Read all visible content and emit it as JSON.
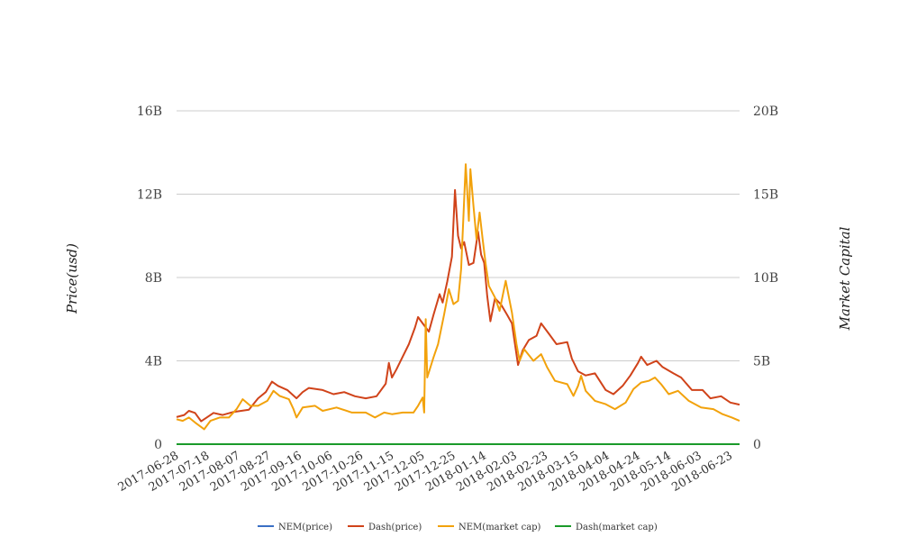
{
  "chart_data": {
    "type": "line",
    "title": "",
    "ylabel": "Price(usd)",
    "y2label": "Market Capital",
    "ylim": [
      0,
      16000000000
    ],
    "y2lim": [
      0,
      20000000000
    ],
    "y_ticks": [
      "0",
      "4B",
      "8B",
      "12B",
      "16B"
    ],
    "y2_ticks": [
      "0",
      "5B",
      "10B",
      "15B",
      "20B"
    ],
    "x_ticks": [
      "2017-06-28",
      "2017-07-18",
      "2017-08-07",
      "2017-08-27",
      "2017-09-16",
      "2017-10-06",
      "2017-10-26",
      "2017-11-15",
      "2017-12-05",
      "2017-12-25",
      "2018-01-14",
      "2018-02-03",
      "2018-02-23",
      "2018-03-15",
      "2018-04-04",
      "2018-04-24",
      "2018-05-14",
      "2018-06-03",
      "2018-06-23"
    ],
    "x_range": [
      "2017-06-28",
      "2018-06-29"
    ],
    "grid": true,
    "legend_position": "bottom",
    "series": [
      {
        "name": "NEM(price)",
        "axis": "left",
        "color": "#3a6fc4",
        "points": [
          [
            "2017-06-28",
            0.2
          ],
          [
            "2018-01-07",
            1.9
          ],
          [
            "2018-06-29",
            0.2
          ]
        ]
      },
      {
        "name": "Dash(price)",
        "axis": "left",
        "color": "#d0431a",
        "points": [
          [
            "2017-06-28",
            1300000000
          ],
          [
            "2017-07-03",
            1400000000
          ],
          [
            "2017-07-06",
            1600000000
          ],
          [
            "2017-07-10",
            1500000000
          ],
          [
            "2017-07-14",
            1100000000
          ],
          [
            "2017-07-18",
            1300000000
          ],
          [
            "2017-07-22",
            1500000000
          ],
          [
            "2017-07-28",
            1400000000
          ],
          [
            "2017-08-04",
            1550000000
          ],
          [
            "2017-08-14",
            1650000000
          ],
          [
            "2017-08-20",
            2200000000
          ],
          [
            "2017-08-25",
            2500000000
          ],
          [
            "2017-08-29",
            3000000000
          ],
          [
            "2017-09-02",
            2800000000
          ],
          [
            "2017-09-08",
            2600000000
          ],
          [
            "2017-09-14",
            2200000000
          ],
          [
            "2017-09-18",
            2500000000
          ],
          [
            "2017-09-22",
            2700000000
          ],
          [
            "2017-10-01",
            2600000000
          ],
          [
            "2017-10-08",
            2400000000
          ],
          [
            "2017-10-15",
            2500000000
          ],
          [
            "2017-10-22",
            2300000000
          ],
          [
            "2017-10-29",
            2200000000
          ],
          [
            "2017-11-05",
            2300000000
          ],
          [
            "2017-11-11",
            2900000000
          ],
          [
            "2017-11-13",
            3900000000
          ],
          [
            "2017-11-15",
            3200000000
          ],
          [
            "2017-11-18",
            3600000000
          ],
          [
            "2017-11-22",
            4200000000
          ],
          [
            "2017-11-26",
            4800000000
          ],
          [
            "2017-11-30",
            5600000000
          ],
          [
            "2017-12-02",
            6100000000
          ],
          [
            "2017-12-05",
            5800000000
          ],
          [
            "2017-12-09",
            5400000000
          ],
          [
            "2017-12-12",
            6200000000
          ],
          [
            "2017-12-16",
            7200000000
          ],
          [
            "2017-12-18",
            6800000000
          ],
          [
            "2017-12-21",
            7800000000
          ],
          [
            "2017-12-24",
            9000000000
          ],
          [
            "2017-12-26",
            12200000000
          ],
          [
            "2017-12-28",
            10000000000
          ],
          [
            "2017-12-30",
            9400000000
          ],
          [
            "2018-01-01",
            9700000000
          ],
          [
            "2018-01-04",
            8600000000
          ],
          [
            "2018-01-07",
            8700000000
          ],
          [
            "2018-01-10",
            10200000000
          ],
          [
            "2018-01-12",
            9100000000
          ],
          [
            "2018-01-14",
            8700000000
          ],
          [
            "2018-01-16",
            7100000000
          ],
          [
            "2018-01-18",
            5900000000
          ],
          [
            "2018-01-21",
            7000000000
          ],
          [
            "2018-01-25",
            6700000000
          ],
          [
            "2018-01-29",
            6200000000
          ],
          [
            "2018-02-01",
            5800000000
          ],
          [
            "2018-02-05",
            3800000000
          ],
          [
            "2018-02-08",
            4500000000
          ],
          [
            "2018-02-12",
            5000000000
          ],
          [
            "2018-02-17",
            5200000000
          ],
          [
            "2018-02-20",
            5800000000
          ],
          [
            "2018-02-25",
            5300000000
          ],
          [
            "2018-03-02",
            4800000000
          ],
          [
            "2018-03-09",
            4900000000
          ],
          [
            "2018-03-12",
            4100000000
          ],
          [
            "2018-03-16",
            3500000000
          ],
          [
            "2018-03-21",
            3300000000
          ],
          [
            "2018-03-27",
            3400000000
          ],
          [
            "2018-04-03",
            2600000000
          ],
          [
            "2018-04-08",
            2400000000
          ],
          [
            "2018-04-14",
            2800000000
          ],
          [
            "2018-04-19",
            3300000000
          ],
          [
            "2018-04-24",
            3900000000
          ],
          [
            "2018-04-26",
            4200000000
          ],
          [
            "2018-04-30",
            3800000000
          ],
          [
            "2018-05-06",
            4000000000
          ],
          [
            "2018-05-10",
            3700000000
          ],
          [
            "2018-05-17",
            3400000000
          ],
          [
            "2018-05-22",
            3200000000
          ],
          [
            "2018-05-29",
            2600000000
          ],
          [
            "2018-06-05",
            2600000000
          ],
          [
            "2018-06-10",
            2200000000
          ],
          [
            "2018-06-17",
            2300000000
          ],
          [
            "2018-06-23",
            2000000000
          ],
          [
            "2018-06-29",
            1900000000
          ]
        ]
      },
      {
        "name": "NEM(market cap)",
        "axis": "right",
        "color": "#f2a20c",
        "points": [
          [
            "2017-06-28",
            1500000000
          ],
          [
            "2017-07-02",
            1400000000
          ],
          [
            "2017-07-06",
            1600000000
          ],
          [
            "2017-07-10",
            1300000000
          ],
          [
            "2017-07-16",
            900000000
          ],
          [
            "2017-07-20",
            1400000000
          ],
          [
            "2017-07-26",
            1600000000
          ],
          [
            "2017-08-01",
            1600000000
          ],
          [
            "2017-08-06",
            2100000000
          ],
          [
            "2017-08-10",
            2700000000
          ],
          [
            "2017-08-15",
            2300000000
          ],
          [
            "2017-08-20",
            2300000000
          ],
          [
            "2017-08-26",
            2600000000
          ],
          [
            "2017-08-30",
            3200000000
          ],
          [
            "2017-09-03",
            2900000000
          ],
          [
            "2017-09-09",
            2700000000
          ],
          [
            "2017-09-12",
            2100000000
          ],
          [
            "2017-09-14",
            1600000000
          ],
          [
            "2017-09-18",
            2200000000
          ],
          [
            "2017-09-26",
            2300000000
          ],
          [
            "2017-10-01",
            2000000000
          ],
          [
            "2017-10-10",
            2200000000
          ],
          [
            "2017-10-20",
            1900000000
          ],
          [
            "2017-10-29",
            1900000000
          ],
          [
            "2017-11-04",
            1600000000
          ],
          [
            "2017-11-10",
            1900000000
          ],
          [
            "2017-11-15",
            1800000000
          ],
          [
            "2017-11-22",
            1900000000
          ],
          [
            "2017-11-29",
            1900000000
          ],
          [
            "2017-12-02",
            2300000000
          ],
          [
            "2017-12-05",
            2800000000
          ],
          [
            "2017-12-06",
            1900000000
          ],
          [
            "2017-12-07",
            7500000000
          ],
          [
            "2017-12-08",
            4000000000
          ],
          [
            "2017-12-12",
            5200000000
          ],
          [
            "2017-12-15",
            6000000000
          ],
          [
            "2017-12-19",
            7800000000
          ],
          [
            "2017-12-22",
            9300000000
          ],
          [
            "2017-12-25",
            8400000000
          ],
          [
            "2017-12-28",
            8600000000
          ],
          [
            "2017-12-30",
            10500000000
          ],
          [
            "2018-01-02",
            16800000000
          ],
          [
            "2018-01-04",
            13400000000
          ],
          [
            "2018-01-05",
            16500000000
          ],
          [
            "2018-01-07",
            14300000000
          ],
          [
            "2018-01-09",
            12300000000
          ],
          [
            "2018-01-11",
            13900000000
          ],
          [
            "2018-01-13",
            12300000000
          ],
          [
            "2018-01-15",
            10800000000
          ],
          [
            "2018-01-17",
            9500000000
          ],
          [
            "2018-01-21",
            8800000000
          ],
          [
            "2018-01-24",
            8000000000
          ],
          [
            "2018-01-28",
            9800000000
          ],
          [
            "2018-02-01",
            7900000000
          ],
          [
            "2018-02-04",
            6000000000
          ],
          [
            "2018-02-06",
            5000000000
          ],
          [
            "2018-02-09",
            5700000000
          ],
          [
            "2018-02-15",
            5000000000
          ],
          [
            "2018-02-20",
            5400000000
          ],
          [
            "2018-02-24",
            4600000000
          ],
          [
            "2018-03-01",
            3800000000
          ],
          [
            "2018-03-09",
            3600000000
          ],
          [
            "2018-03-13",
            2900000000
          ],
          [
            "2018-03-16",
            3500000000
          ],
          [
            "2018-03-18",
            4100000000
          ],
          [
            "2018-03-21",
            3200000000
          ],
          [
            "2018-03-27",
            2600000000
          ],
          [
            "2018-04-03",
            2400000000
          ],
          [
            "2018-04-09",
            2100000000
          ],
          [
            "2018-04-16",
            2500000000
          ],
          [
            "2018-04-21",
            3300000000
          ],
          [
            "2018-04-26",
            3700000000
          ],
          [
            "2018-05-01",
            3800000000
          ],
          [
            "2018-05-05",
            4000000000
          ],
          [
            "2018-05-09",
            3600000000
          ],
          [
            "2018-05-14",
            3000000000
          ],
          [
            "2018-05-20",
            3200000000
          ],
          [
            "2018-05-27",
            2600000000
          ],
          [
            "2018-06-04",
            2200000000
          ],
          [
            "2018-06-12",
            2100000000
          ],
          [
            "2018-06-18",
            1800000000
          ],
          [
            "2018-06-24",
            1600000000
          ],
          [
            "2018-06-29",
            1400000000
          ]
        ]
      },
      {
        "name": "Dash(market cap)",
        "axis": "right",
        "color": "#1a9a2a",
        "points": [
          [
            "2017-06-28",
            0
          ],
          [
            "2018-06-29",
            0
          ]
        ]
      }
    ]
  }
}
